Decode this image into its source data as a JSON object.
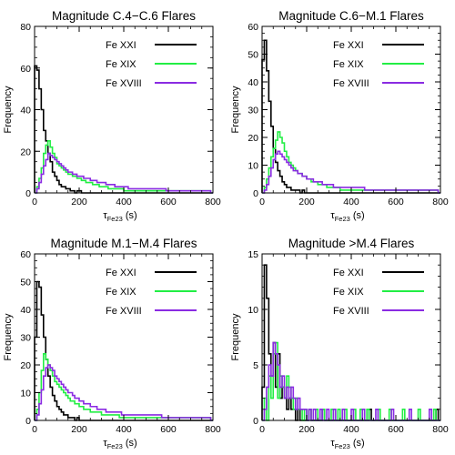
{
  "chart_data": [
    {
      "type": "histogram",
      "title": "Magnitude C.4−C.6 Flares",
      "xlabel": "τ",
      "xlabel_sub": "Fe23",
      "xlabel_unit": "(s)",
      "ylabel": "Frequency",
      "xlim": [
        0,
        800
      ],
      "ylim": [
        0,
        80
      ],
      "xticks": [
        "0",
        "200",
        "400",
        "600",
        "800"
      ],
      "yticks": [
        "0",
        "20",
        "40",
        "60",
        "80"
      ],
      "legend_position": "top-right",
      "bin_width": 10,
      "bin_start": 0,
      "series": [
        {
          "name": "Fe XXI",
          "color": "#000000",
          "values": [
            61,
            59,
            50,
            40,
            30,
            25,
            19,
            15,
            10,
            8,
            6,
            4,
            3,
            3,
            2,
            2,
            1,
            1,
            0,
            1,
            1,
            0,
            0,
            0,
            0,
            0,
            0,
            0,
            0,
            0,
            0,
            0,
            0,
            0,
            0,
            0,
            0,
            0,
            0,
            0,
            0,
            0,
            0,
            0,
            0,
            0,
            0,
            0,
            0,
            0,
            0,
            0,
            0,
            0,
            0,
            0,
            0,
            0,
            0,
            0,
            0,
            0,
            0,
            0,
            0,
            0,
            0,
            0,
            0,
            0,
            0,
            0,
            0,
            0,
            0,
            0,
            0,
            0,
            0,
            0
          ]
        },
        {
          "name": "Fe XIX",
          "color": "#22ee44",
          "values": [
            0,
            3,
            7,
            12,
            19,
            23,
            25,
            22,
            19,
            17,
            14,
            13,
            12,
            11,
            10,
            9,
            9,
            8,
            8,
            7,
            7,
            6,
            6,
            5,
            5,
            5,
            4,
            4,
            4,
            3,
            3,
            3,
            3,
            2,
            2,
            2,
            2,
            2,
            2,
            2,
            1,
            1,
            1,
            1,
            1,
            1,
            1,
            1,
            1,
            1,
            1,
            1,
            1,
            1,
            1,
            1,
            1,
            1,
            1,
            1,
            1,
            1,
            1,
            1,
            1,
            1,
            1,
            1,
            1,
            1,
            1,
            1,
            1,
            1,
            1,
            1,
            1,
            1,
            1,
            0
          ]
        },
        {
          "name": "Fe XVIII",
          "color": "#8a2be2",
          "values": [
            0,
            2,
            5,
            9,
            13,
            16,
            19,
            18,
            17,
            16,
            15,
            14,
            13,
            12,
            11,
            10,
            10,
            9,
            9,
            8,
            8,
            8,
            7,
            7,
            7,
            6,
            6,
            6,
            5,
            5,
            5,
            5,
            4,
            4,
            4,
            4,
            3,
            3,
            3,
            3,
            3,
            3,
            2,
            2,
            2,
            2,
            2,
            2,
            2,
            2,
            2,
            2,
            2,
            2,
            2,
            2,
            2,
            2,
            2,
            1,
            1,
            1,
            1,
            1,
            1,
            1,
            1,
            1,
            1,
            1,
            1,
            1,
            1,
            1,
            1,
            1,
            1,
            1,
            1,
            0
          ]
        }
      ]
    },
    {
      "type": "histogram",
      "title": "Magnitude C.6−M.1 Flares",
      "xlabel": "τ",
      "xlabel_sub": "Fe23",
      "xlabel_unit": "(s)",
      "ylabel": "Frequency",
      "xlim": [
        0,
        800
      ],
      "ylim": [
        0,
        60
      ],
      "xticks": [
        "0",
        "200",
        "400",
        "600",
        "800"
      ],
      "yticks": [
        "0",
        "10",
        "20",
        "30",
        "40",
        "50",
        "60"
      ],
      "legend_position": "top-right",
      "bin_width": 10,
      "bin_start": 0,
      "series": [
        {
          "name": "Fe XXI",
          "color": "#000000",
          "values": [
            48,
            55,
            44,
            33,
            24,
            16,
            11,
            8,
            6,
            4,
            3,
            2,
            2,
            1,
            1,
            1,
            1,
            0,
            1,
            0,
            0,
            0,
            0,
            0,
            0,
            0,
            0,
            0,
            0,
            0,
            0,
            0,
            0,
            0,
            0,
            0,
            0,
            0,
            0,
            0,
            0,
            0,
            0,
            0,
            0,
            0,
            0,
            0,
            0,
            0,
            0,
            0,
            0,
            0,
            0,
            0,
            0,
            0,
            0,
            0,
            0,
            0,
            0,
            0,
            0,
            0,
            0,
            0,
            0,
            0,
            0,
            0,
            0,
            0,
            0,
            0,
            0,
            0,
            0,
            0
          ]
        },
        {
          "name": "Fe XIX",
          "color": "#22ee44",
          "values": [
            0,
            2,
            5,
            9,
            13,
            16,
            19,
            22,
            20,
            18,
            15,
            13,
            11,
            10,
            9,
            8,
            7,
            7,
            6,
            6,
            5,
            5,
            4,
            4,
            4,
            3,
            3,
            3,
            3,
            2,
            2,
            2,
            2,
            2,
            2,
            1,
            1,
            1,
            1,
            1,
            1,
            1,
            1,
            1,
            1,
            1,
            1,
            1,
            1,
            1,
            1,
            1,
            1,
            1,
            1,
            1,
            1,
            1,
            1,
            1,
            1,
            1,
            1,
            1,
            1,
            1,
            1,
            1,
            1,
            1,
            1,
            1,
            1,
            1,
            1,
            1,
            1,
            1,
            1,
            0
          ]
        },
        {
          "name": "Fe XVIII",
          "color": "#8a2be2",
          "values": [
            0,
            1,
            3,
            6,
            9,
            12,
            14,
            15,
            14,
            13,
            12,
            11,
            10,
            9,
            8,
            8,
            7,
            7,
            6,
            6,
            5,
            5,
            5,
            4,
            4,
            4,
            4,
            3,
            3,
            3,
            3,
            3,
            2,
            2,
            2,
            2,
            2,
            2,
            2,
            2,
            2,
            2,
            2,
            2,
            2,
            2,
            1,
            1,
            1,
            1,
            1,
            1,
            1,
            1,
            1,
            1,
            1,
            1,
            1,
            1,
            1,
            1,
            1,
            1,
            1,
            1,
            1,
            1,
            1,
            1,
            1,
            1,
            1,
            1,
            1,
            1,
            1,
            1,
            1,
            0
          ]
        }
      ]
    },
    {
      "type": "histogram",
      "title": "Magnitude M.1−M.4 Flares",
      "xlabel": "τ",
      "xlabel_sub": "Fe23",
      "xlabel_unit": "(s)",
      "ylabel": "Frequency",
      "xlim": [
        0,
        800
      ],
      "ylim": [
        0,
        60
      ],
      "xticks": [
        "0",
        "200",
        "400",
        "600",
        "800"
      ],
      "yticks": [
        "0",
        "10",
        "20",
        "30",
        "40",
        "50",
        "60"
      ],
      "legend_position": "top-right",
      "bin_width": 10,
      "bin_start": 0,
      "series": [
        {
          "name": "Fe XXI",
          "color": "#000000",
          "values": [
            30,
            50,
            48,
            38,
            30,
            22,
            16,
            12,
            9,
            7,
            5,
            4,
            3,
            2,
            2,
            1,
            1,
            1,
            0,
            1,
            0,
            0,
            0,
            0,
            0,
            0,
            0,
            0,
            0,
            0,
            0,
            0,
            0,
            0,
            0,
            0,
            0,
            0,
            0,
            0,
            0,
            0,
            0,
            0,
            0,
            0,
            0,
            0,
            0,
            0,
            0,
            0,
            0,
            0,
            0,
            0,
            0,
            0,
            0,
            0,
            0,
            0,
            0,
            0,
            0,
            0,
            0,
            0,
            0,
            0,
            0,
            0,
            0,
            0,
            0,
            0,
            0,
            0,
            0,
            0
          ]
        },
        {
          "name": "Fe XIX",
          "color": "#22ee44",
          "values": [
            0,
            4,
            10,
            18,
            24,
            22,
            20,
            18,
            16,
            14,
            13,
            12,
            11,
            10,
            9,
            8,
            7,
            7,
            6,
            6,
            5,
            5,
            4,
            4,
            4,
            3,
            3,
            3,
            3,
            3,
            2,
            2,
            2,
            2,
            2,
            2,
            2,
            2,
            1,
            1,
            1,
            1,
            1,
            1,
            1,
            1,
            1,
            1,
            1,
            1,
            1,
            1,
            1,
            1,
            1,
            1,
            1,
            1,
            1,
            1,
            1,
            1,
            1,
            1,
            1,
            1,
            1,
            1,
            1,
            1,
            1,
            1,
            1,
            1,
            1,
            1,
            1,
            1,
            1,
            0
          ]
        },
        {
          "name": "Fe XVIII",
          "color": "#8a2be2",
          "values": [
            0,
            2,
            6,
            11,
            16,
            19,
            20,
            19,
            18,
            16,
            15,
            14,
            13,
            12,
            11,
            10,
            10,
            9,
            8,
            8,
            7,
            7,
            6,
            6,
            6,
            5,
            5,
            5,
            4,
            4,
            4,
            4,
            3,
            3,
            3,
            3,
            3,
            3,
            3,
            2,
            2,
            2,
            2,
            2,
            2,
            2,
            2,
            2,
            2,
            2,
            2,
            2,
            2,
            2,
            2,
            2,
            2,
            1,
            1,
            1,
            1,
            1,
            1,
            1,
            1,
            1,
            1,
            1,
            1,
            1,
            1,
            1,
            1,
            1,
            1,
            1,
            1,
            1,
            1,
            0
          ]
        }
      ]
    },
    {
      "type": "histogram",
      "title": "Magnitude >M.4 Flares",
      "xlabel": "τ",
      "xlabel_sub": "Fe23",
      "xlabel_unit": "(s)",
      "ylabel": "Frequency",
      "xlim": [
        0,
        800
      ],
      "ylim": [
        0,
        15
      ],
      "xticks": [
        "0",
        "200",
        "400",
        "600",
        "800"
      ],
      "yticks": [
        "0",
        "5",
        "10",
        "15"
      ],
      "legend_position": "top-right",
      "bin_width": 10,
      "bin_start": 0,
      "series": [
        {
          "name": "Fe XXI",
          "color": "#000000",
          "values": [
            3,
            14,
            11,
            6,
            4,
            7,
            3,
            6,
            2,
            3,
            2,
            1,
            2,
            1,
            1,
            0,
            1,
            0,
            0,
            0,
            0,
            1,
            0,
            0,
            0,
            0,
            0,
            1,
            0,
            0,
            0,
            0,
            0,
            0,
            0,
            0,
            0,
            0,
            0,
            0,
            0,
            0,
            0,
            0,
            0,
            0,
            0,
            0,
            1,
            0,
            0,
            0,
            0,
            0,
            0,
            0,
            0,
            0,
            0,
            0,
            0,
            0,
            0,
            0,
            0,
            0,
            0,
            0,
            0,
            0,
            0,
            0,
            0,
            0,
            0,
            0,
            0,
            0,
            1,
            0
          ]
        },
        {
          "name": "Fe XIX",
          "color": "#22ee44",
          "values": [
            0,
            2,
            0,
            4,
            2,
            6,
            7,
            2,
            4,
            3,
            2,
            4,
            3,
            2,
            1,
            2,
            1,
            1,
            0,
            1,
            0,
            1,
            0,
            0,
            1,
            0,
            0,
            1,
            0,
            0,
            0,
            1,
            0,
            0,
            1,
            0,
            0,
            1,
            0,
            0,
            0,
            1,
            0,
            0,
            1,
            0,
            0,
            1,
            0,
            0,
            0,
            0,
            1,
            0,
            0,
            0,
            0,
            1,
            0,
            0,
            0,
            0,
            0,
            1,
            0,
            0,
            0,
            0,
            0,
            0,
            1,
            0,
            0,
            0,
            0,
            0,
            0,
            1,
            0,
            0
          ]
        },
        {
          "name": "Fe XVIII",
          "color": "#8a2be2",
          "values": [
            0,
            1,
            3,
            5,
            4,
            7,
            6,
            5,
            3,
            4,
            2,
            3,
            2,
            3,
            2,
            1,
            2,
            1,
            1,
            1,
            0,
            1,
            0,
            1,
            0,
            0,
            1,
            0,
            0,
            1,
            0,
            0,
            1,
            0,
            0,
            0,
            1,
            0,
            0,
            0,
            1,
            0,
            0,
            0,
            0,
            1,
            0,
            0,
            0,
            0,
            0,
            1,
            0,
            0,
            0,
            0,
            0,
            0,
            1,
            0,
            0,
            0,
            0,
            0,
            0,
            0,
            1,
            0,
            0,
            0,
            0,
            0,
            0,
            0,
            0,
            1,
            0,
            0,
            0,
            0
          ]
        }
      ]
    }
  ]
}
